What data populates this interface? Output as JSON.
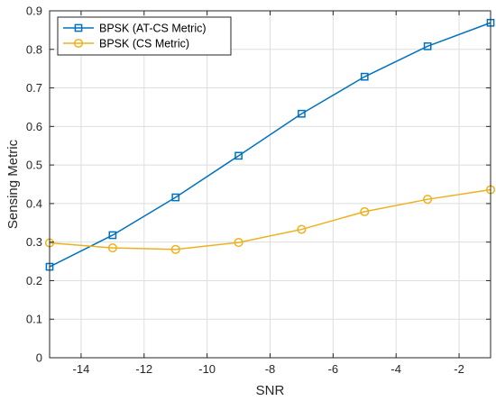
{
  "chart_data": {
    "type": "line",
    "title": "",
    "xlabel": "SNR",
    "ylabel": "Sensing Metric",
    "xlim": [
      -15,
      -1
    ],
    "ylim": [
      0,
      0.9
    ],
    "xticks": [
      -14,
      -12,
      -10,
      -8,
      -6,
      -4,
      -2
    ],
    "yticks": [
      0,
      0.1,
      0.2,
      0.3,
      0.4,
      0.5,
      0.6,
      0.7,
      0.8,
      0.9
    ],
    "grid": true,
    "legend_position": "top-left",
    "series": [
      {
        "name": "BPSK (AT-CS Metric)",
        "color": "#0072BD",
        "marker": "square",
        "x": [
          -15,
          -13,
          -11,
          -9,
          -7,
          -5,
          -3,
          -1
        ],
        "y": [
          0.236,
          0.318,
          0.416,
          0.524,
          0.633,
          0.729,
          0.808,
          0.869
        ]
      },
      {
        "name": "BPSK (CS Metric)",
        "color": "#EDB120",
        "marker": "circle",
        "x": [
          -15,
          -13,
          -11,
          -9,
          -7,
          -5,
          -3,
          -1
        ],
        "y": [
          0.298,
          0.285,
          0.281,
          0.299,
          0.333,
          0.379,
          0.411,
          0.436
        ]
      }
    ]
  }
}
